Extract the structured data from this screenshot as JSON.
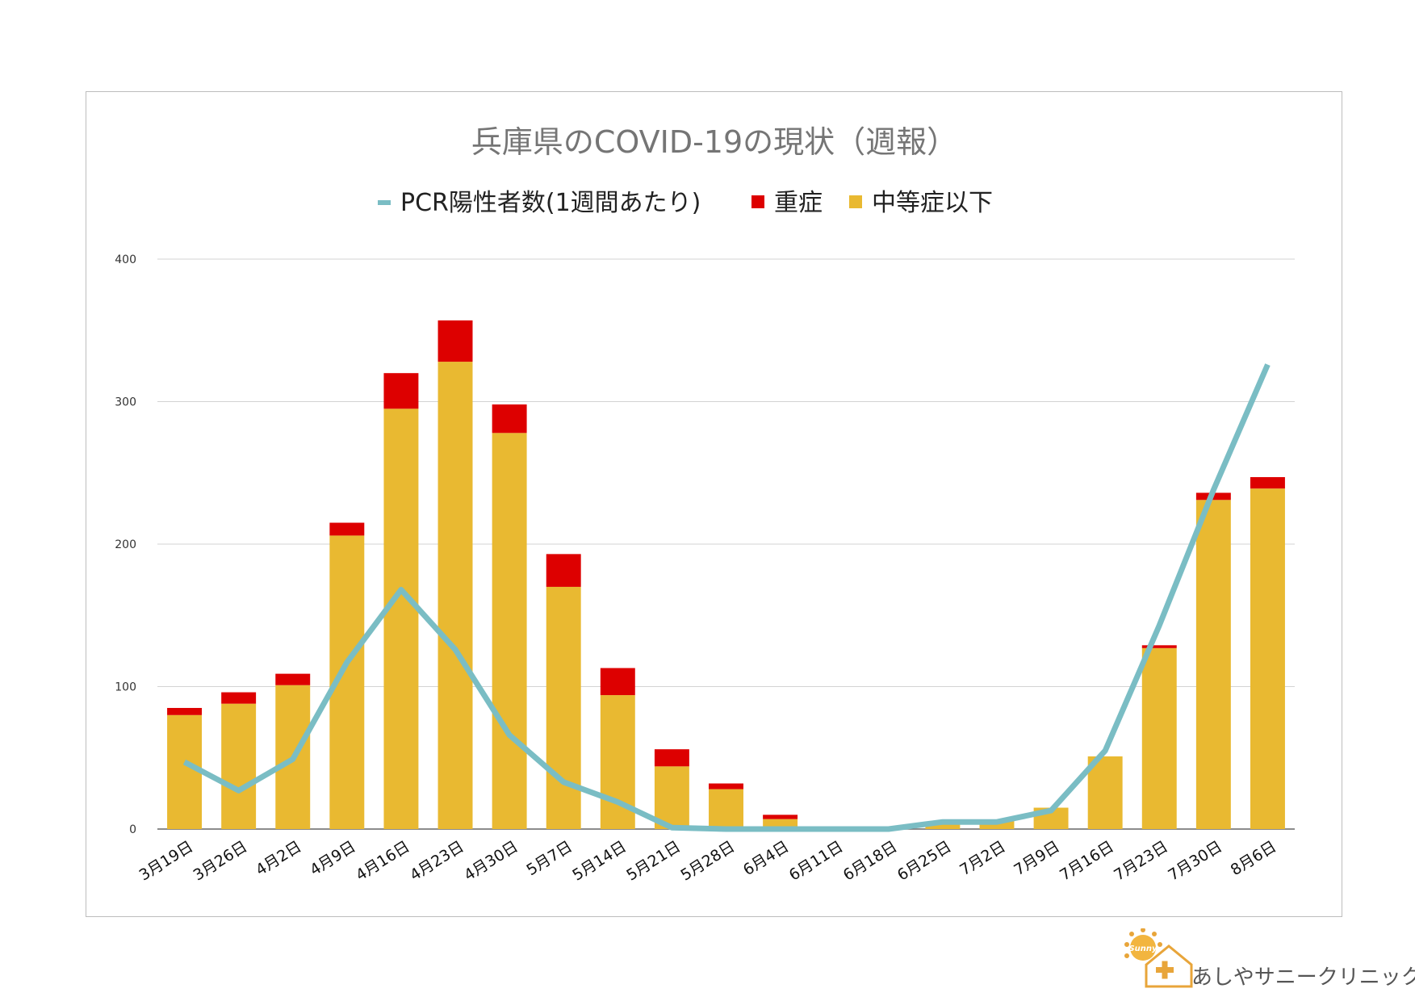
{
  "chart_data": {
    "type": "bar",
    "title": "兵庫県のCOVID-19の現状（週報）",
    "categories": [
      "3月19日",
      "3月26日",
      "4月2日",
      "4月9日",
      "4月16日",
      "4月23日",
      "4月30日",
      "5月7日",
      "5月14日",
      "5月21日",
      "5月28日",
      "6月4日",
      "6月11日",
      "6月18日",
      "6月25日",
      "7月2日",
      "7月9日",
      "7月16日",
      "7月23日",
      "7月30日",
      "8月6日"
    ],
    "series": [
      {
        "name": "中等症以下",
        "kind": "bar-stacked",
        "color": "#E9B931",
        "values": [
          80,
          88,
          101,
          206,
          295,
          328,
          278,
          170,
          94,
          44,
          28,
          7,
          0,
          0,
          5,
          6,
          15,
          51,
          127,
          231,
          239
        ]
      },
      {
        "name": "重症",
        "kind": "bar-stacked",
        "color": "#DD0000",
        "values": [
          5,
          8,
          8,
          9,
          25,
          29,
          20,
          23,
          19,
          12,
          4,
          3,
          0,
          0,
          0,
          0,
          0,
          0,
          2,
          5,
          8
        ]
      },
      {
        "name": "PCR陽性者数(1週間あたり)",
        "kind": "line",
        "color": "#7ABDC4",
        "values": [
          47,
          27,
          49,
          117,
          168,
          126,
          66,
          33,
          19,
          1,
          0,
          0,
          0,
          0,
          5,
          5,
          13,
          55,
          143,
          238,
          326
        ]
      }
    ],
    "legend_order": [
      "PCR陽性者数(1週間あたり)",
      "重症",
      "中等症以下"
    ],
    "legend_position": "top",
    "ylim": [
      0,
      400
    ],
    "yticks": [
      "0",
      "100",
      "200",
      "300",
      "400"
    ],
    "grid": true,
    "xlabel": "",
    "ylabel": ""
  },
  "brand": {
    "name": "あしやサニークリニック",
    "logo_word": "Sunny",
    "logo_color": "#E8A53A"
  }
}
